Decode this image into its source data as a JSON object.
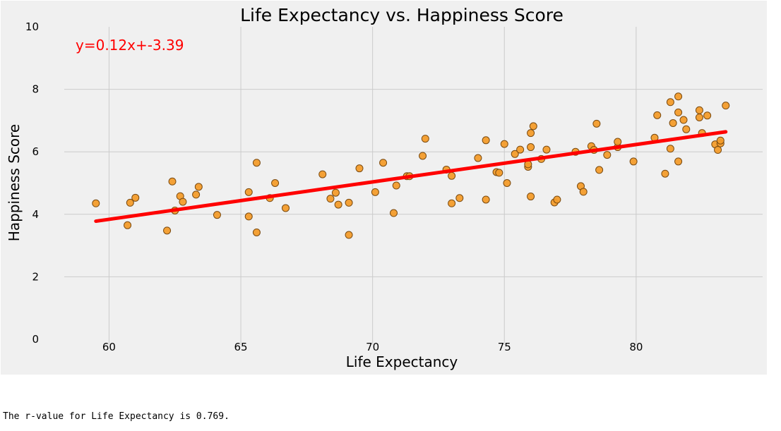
{
  "chart_data": {
    "type": "scatter",
    "title": "Life Expectancy vs. Happiness Score",
    "xlabel": "Life Expectancy",
    "ylabel": "Happiness Score",
    "xlim": [
      58.3,
      84.8
    ],
    "ylim": [
      0,
      10
    ],
    "x_ticks": [
      60,
      65,
      70,
      75,
      80
    ],
    "y_ticks": [
      0,
      2,
      4,
      6,
      8,
      10
    ],
    "grid": true,
    "style": "fivethirtyeight",
    "colors": {
      "background": "#f0f0f0",
      "grid": "#cbcbcb",
      "point_fill": "#f39c2b",
      "point_edge": "#7a4a10",
      "regression": "#ff0000"
    },
    "regression": {
      "equation": "y=0.12x+-3.39",
      "slope": 0.12,
      "intercept": -3.39,
      "x_range": [
        59.5,
        83.4
      ],
      "y_range": [
        3.78,
        6.64
      ]
    },
    "points": [
      [
        59.5,
        4.35
      ],
      [
        60.7,
        3.65
      ],
      [
        60.8,
        4.37
      ],
      [
        61.0,
        4.53
      ],
      [
        62.2,
        3.48
      ],
      [
        62.4,
        5.05
      ],
      [
        62.5,
        4.12
      ],
      [
        62.7,
        4.58
      ],
      [
        62.8,
        4.4
      ],
      [
        63.3,
        4.63
      ],
      [
        63.4,
        4.88
      ],
      [
        64.1,
        3.98
      ],
      [
        65.3,
        3.93
      ],
      [
        65.3,
        4.71
      ],
      [
        65.6,
        5.65
      ],
      [
        65.6,
        3.42
      ],
      [
        66.1,
        4.52
      ],
      [
        66.3,
        5.0
      ],
      [
        66.7,
        4.2
      ],
      [
        68.1,
        5.28
      ],
      [
        68.4,
        4.5
      ],
      [
        68.6,
        4.69
      ],
      [
        68.7,
        4.31
      ],
      [
        69.1,
        4.37
      ],
      [
        69.1,
        3.34
      ],
      [
        69.5,
        5.47
      ],
      [
        70.1,
        4.71
      ],
      [
        70.4,
        5.65
      ],
      [
        70.8,
        4.04
      ],
      [
        70.9,
        4.92
      ],
      [
        71.3,
        5.22
      ],
      [
        71.4,
        5.22
      ],
      [
        71.9,
        5.87
      ],
      [
        72.0,
        6.42
      ],
      [
        72.8,
        5.43
      ],
      [
        73.0,
        5.23
      ],
      [
        73.0,
        4.35
      ],
      [
        73.3,
        4.52
      ],
      [
        74.0,
        5.8
      ],
      [
        74.3,
        4.47
      ],
      [
        74.3,
        6.37
      ],
      [
        74.7,
        5.35
      ],
      [
        74.8,
        5.33
      ],
      [
        75.0,
        6.25
      ],
      [
        75.1,
        5.0
      ],
      [
        75.4,
        5.93
      ],
      [
        75.6,
        6.07
      ],
      [
        75.9,
        5.52
      ],
      [
        75.9,
        5.6
      ],
      [
        76.0,
        6.15
      ],
      [
        76.0,
        6.6
      ],
      [
        76.0,
        4.57
      ],
      [
        76.1,
        6.82
      ],
      [
        76.4,
        5.77
      ],
      [
        76.6,
        6.07
      ],
      [
        76.9,
        4.38
      ],
      [
        77.0,
        4.47
      ],
      [
        77.7,
        6.0
      ],
      [
        77.9,
        4.9
      ],
      [
        78.0,
        4.72
      ],
      [
        78.3,
        6.18
      ],
      [
        78.4,
        6.06
      ],
      [
        78.5,
        6.9
      ],
      [
        78.6,
        5.42
      ],
      [
        78.9,
        5.9
      ],
      [
        79.3,
        6.15
      ],
      [
        79.3,
        6.32
      ],
      [
        79.9,
        5.69
      ],
      [
        80.7,
        6.45
      ],
      [
        80.8,
        7.17
      ],
      [
        81.1,
        5.3
      ],
      [
        81.3,
        7.59
      ],
      [
        81.3,
        6.1
      ],
      [
        81.4,
        6.92
      ],
      [
        81.6,
        7.26
      ],
      [
        81.6,
        7.77
      ],
      [
        81.6,
        5.69
      ],
      [
        81.8,
        7.02
      ],
      [
        81.9,
        6.72
      ],
      [
        82.4,
        7.1
      ],
      [
        82.4,
        7.33
      ],
      [
        82.5,
        6.6
      ],
      [
        82.7,
        7.16
      ],
      [
        83.0,
        6.24
      ],
      [
        83.1,
        6.06
      ],
      [
        83.2,
        6.27
      ],
      [
        83.2,
        6.36
      ],
      [
        83.4,
        7.48
      ]
    ]
  },
  "output": {
    "text": "The r-value for Life Expectancy is 0.769."
  }
}
